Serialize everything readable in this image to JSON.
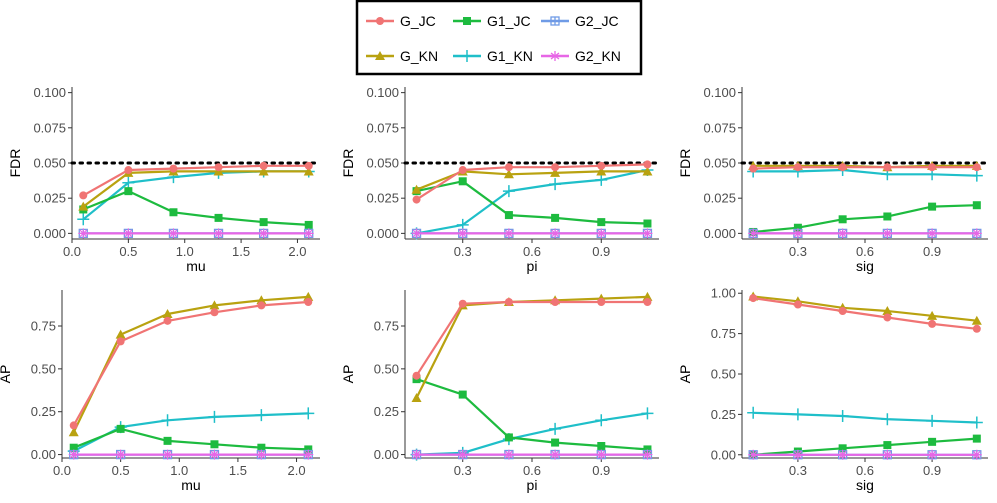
{
  "legend": {
    "entries": [
      {
        "key": "G_JC",
        "label": "G_JC"
      },
      {
        "key": "G1_JC",
        "label": "G1_JC"
      },
      {
        "key": "G2_JC",
        "label": "G2_JC"
      },
      {
        "key": "G_KN",
        "label": "G_KN"
      },
      {
        "key": "G1_KN",
        "label": "G1_KN"
      },
      {
        "key": "G2_KN",
        "label": "G2_KN"
      }
    ]
  },
  "series_style": {
    "G_JC": {
      "color": "#F07474",
      "marker": "circle"
    },
    "G1_JC": {
      "color": "#1DBB3F",
      "marker": "square"
    },
    "G2_JC": {
      "color": "#6F9BE6",
      "marker": "boxplus"
    },
    "G_KN": {
      "color": "#B9A210",
      "marker": "triangle"
    },
    "G1_KN": {
      "color": "#1FBFC9",
      "marker": "plus"
    },
    "G2_KN": {
      "color": "#E766E6",
      "marker": "asterisk"
    }
  },
  "chart_data": [
    {
      "type": "line",
      "id": "fdr-mu",
      "xlabel": "mu",
      "ylabel": "FDR",
      "x": [
        0.1,
        0.5,
        0.9,
        1.3,
        1.7,
        2.1
      ],
      "xlim": [
        0.0,
        2.2
      ],
      "ylim": [
        -0.004,
        0.104
      ],
      "xticks": [
        0.0,
        0.5,
        1.0,
        1.5,
        2.0
      ],
      "xtick_labels": [
        "0.0",
        "0.5",
        "1.0",
        "1.5",
        "2.0"
      ],
      "yticks": [
        0.0,
        0.025,
        0.05,
        0.075,
        0.1
      ],
      "ytick_labels": [
        "0.000",
        "0.025",
        "0.050",
        "0.075",
        "0.100"
      ],
      "reference_line": 0.05,
      "series": [
        {
          "name": "G_JC",
          "values": [
            0.027,
            0.045,
            0.046,
            0.047,
            0.048,
            0.048
          ]
        },
        {
          "name": "G_KN",
          "values": [
            0.019,
            0.043,
            0.044,
            0.044,
            0.044,
            0.044
          ]
        },
        {
          "name": "G1_JC",
          "values": [
            0.017,
            0.03,
            0.015,
            0.011,
            0.008,
            0.006
          ]
        },
        {
          "name": "G1_KN",
          "values": [
            0.01,
            0.036,
            0.04,
            0.043,
            0.044,
            0.044
          ]
        },
        {
          "name": "G2_JC",
          "values": [
            0.0,
            0.0,
            0.0,
            0.0,
            0.0,
            0.0
          ]
        },
        {
          "name": "G2_KN",
          "values": [
            0.0,
            0.0,
            0.0,
            0.0,
            0.0,
            0.0
          ]
        }
      ]
    },
    {
      "type": "line",
      "id": "fdr-pi",
      "xlabel": "pi",
      "ylabel": "FDR",
      "x": [
        0.1,
        0.3,
        0.5,
        0.7,
        0.9,
        1.1
      ],
      "xlim": [
        0.05,
        1.15
      ],
      "ylim": [
        -0.004,
        0.104
      ],
      "xticks": [
        0.3,
        0.6,
        0.9
      ],
      "xtick_labels": [
        "0.3",
        "0.6",
        "0.9"
      ],
      "yticks": [
        0.0,
        0.025,
        0.05,
        0.075,
        0.1
      ],
      "ytick_labels": [
        "0.000",
        "0.025",
        "0.050",
        "0.075",
        "0.100"
      ],
      "reference_line": 0.05,
      "series": [
        {
          "name": "G_JC",
          "values": [
            0.024,
            0.045,
            0.047,
            0.047,
            0.048,
            0.049
          ]
        },
        {
          "name": "G_KN",
          "values": [
            0.031,
            0.044,
            0.042,
            0.043,
            0.044,
            0.044
          ]
        },
        {
          "name": "G1_JC",
          "values": [
            0.03,
            0.037,
            0.013,
            0.011,
            0.008,
            0.007
          ]
        },
        {
          "name": "G1_KN",
          "values": [
            0.0,
            0.006,
            0.03,
            0.035,
            0.038,
            0.045
          ]
        },
        {
          "name": "G2_JC",
          "values": [
            0.0,
            0.0,
            0.0,
            0.0,
            0.0,
            0.0
          ]
        },
        {
          "name": "G2_KN",
          "values": [
            0.0,
            0.0,
            0.0,
            0.0,
            0.0,
            0.0
          ]
        }
      ]
    },
    {
      "type": "line",
      "id": "fdr-sig",
      "xlabel": "sig",
      "ylabel": "FDR",
      "x": [
        0.1,
        0.3,
        0.5,
        0.7,
        0.9,
        1.1
      ],
      "xlim": [
        0.05,
        1.15
      ],
      "ylim": [
        -0.004,
        0.104
      ],
      "xticks": [
        0.3,
        0.6,
        0.9
      ],
      "xtick_labels": [
        "0.3",
        "0.6",
        "0.9"
      ],
      "yticks": [
        0.0,
        0.025,
        0.05,
        0.075,
        0.1
      ],
      "ytick_labels": [
        "0.000",
        "0.025",
        "0.050",
        "0.075",
        "0.100"
      ],
      "reference_line": 0.05,
      "series": [
        {
          "name": "G_JC",
          "values": [
            0.046,
            0.047,
            0.047,
            0.047,
            0.047,
            0.047
          ]
        },
        {
          "name": "G_KN",
          "values": [
            0.048,
            0.048,
            0.048,
            0.047,
            0.048,
            0.048
          ]
        },
        {
          "name": "G1_JC",
          "values": [
            0.001,
            0.004,
            0.01,
            0.012,
            0.019,
            0.02
          ]
        },
        {
          "name": "G1_KN",
          "values": [
            0.044,
            0.044,
            0.045,
            0.042,
            0.042,
            0.041
          ]
        },
        {
          "name": "G2_JC",
          "values": [
            0.0,
            0.0,
            0.0,
            0.0,
            0.0,
            0.0
          ]
        },
        {
          "name": "G2_KN",
          "values": [
            0.0,
            0.0,
            0.0,
            0.0,
            0.0,
            0.0
          ]
        }
      ]
    },
    {
      "type": "line",
      "id": "ap-mu",
      "xlabel": "mu",
      "ylabel": "AP",
      "x": [
        0.1,
        0.5,
        0.9,
        1.3,
        1.7,
        2.1
      ],
      "xlim": [
        0.0,
        2.2
      ],
      "ylim": [
        -0.02,
        0.96
      ],
      "xticks": [
        0.0,
        0.5,
        1.0,
        1.5,
        2.0
      ],
      "xtick_labels": [
        "0.0",
        "0.5",
        "1.0",
        "1.5",
        "2.0"
      ],
      "yticks": [
        0.0,
        0.25,
        0.5,
        0.75
      ],
      "ytick_labels": [
        "0.00",
        "0.25",
        "0.50",
        "0.75"
      ],
      "series": [
        {
          "name": "G_JC",
          "values": [
            0.17,
            0.66,
            0.78,
            0.83,
            0.87,
            0.89
          ]
        },
        {
          "name": "G_KN",
          "values": [
            0.13,
            0.7,
            0.82,
            0.87,
            0.9,
            0.92
          ]
        },
        {
          "name": "G1_JC",
          "values": [
            0.04,
            0.15,
            0.08,
            0.06,
            0.04,
            0.03
          ]
        },
        {
          "name": "G1_KN",
          "values": [
            0.02,
            0.16,
            0.2,
            0.22,
            0.23,
            0.24
          ]
        },
        {
          "name": "G2_JC",
          "values": [
            0.0,
            0.0,
            0.0,
            0.0,
            0.0,
            0.0
          ]
        },
        {
          "name": "G2_KN",
          "values": [
            0.0,
            0.0,
            0.0,
            0.0,
            0.0,
            0.0
          ]
        }
      ]
    },
    {
      "type": "line",
      "id": "ap-pi",
      "xlabel": "pi",
      "ylabel": "AP",
      "x": [
        0.1,
        0.3,
        0.5,
        0.7,
        0.9,
        1.1
      ],
      "xlim": [
        0.05,
        1.15
      ],
      "ylim": [
        -0.02,
        0.96
      ],
      "xticks": [
        0.3,
        0.6,
        0.9
      ],
      "xtick_labels": [
        "0.3",
        "0.6",
        "0.9"
      ],
      "yticks": [
        0.0,
        0.25,
        0.5,
        0.75
      ],
      "ytick_labels": [
        "0.00",
        "0.25",
        "0.50",
        "0.75"
      ],
      "series": [
        {
          "name": "G_JC",
          "values": [
            0.46,
            0.88,
            0.89,
            0.89,
            0.89,
            0.89
          ]
        },
        {
          "name": "G_KN",
          "values": [
            0.33,
            0.87,
            0.89,
            0.9,
            0.91,
            0.92
          ]
        },
        {
          "name": "G1_JC",
          "values": [
            0.44,
            0.35,
            0.1,
            0.07,
            0.05,
            0.03
          ]
        },
        {
          "name": "G1_KN",
          "values": [
            0.0,
            0.01,
            0.09,
            0.15,
            0.2,
            0.24
          ]
        },
        {
          "name": "G2_JC",
          "values": [
            0.0,
            0.0,
            0.0,
            0.0,
            0.0,
            0.0
          ]
        },
        {
          "name": "G2_KN",
          "values": [
            0.0,
            0.0,
            0.0,
            0.0,
            0.0,
            0.0
          ]
        }
      ]
    },
    {
      "type": "line",
      "id": "ap-sig",
      "xlabel": "sig",
      "ylabel": "AP",
      "x": [
        0.1,
        0.3,
        0.5,
        0.7,
        0.9,
        1.1
      ],
      "xlim": [
        0.05,
        1.15
      ],
      "ylim": [
        -0.02,
        1.02
      ],
      "xticks": [
        0.3,
        0.6,
        0.9
      ],
      "xtick_labels": [
        "0.3",
        "0.6",
        "0.9"
      ],
      "yticks": [
        0.0,
        0.25,
        0.5,
        0.75,
        1.0
      ],
      "ytick_labels": [
        "0.00",
        "0.25",
        "0.50",
        "0.75",
        "1.00"
      ],
      "series": [
        {
          "name": "G_JC",
          "values": [
            0.97,
            0.93,
            0.89,
            0.85,
            0.81,
            0.78
          ]
        },
        {
          "name": "G_KN",
          "values": [
            0.98,
            0.95,
            0.91,
            0.89,
            0.86,
            0.83
          ]
        },
        {
          "name": "G1_JC",
          "values": [
            0.0,
            0.02,
            0.04,
            0.06,
            0.08,
            0.1
          ]
        },
        {
          "name": "G1_KN",
          "values": [
            0.26,
            0.25,
            0.24,
            0.22,
            0.21,
            0.2
          ]
        },
        {
          "name": "G2_JC",
          "values": [
            0.0,
            0.0,
            0.0,
            0.0,
            0.0,
            0.0
          ]
        },
        {
          "name": "G2_KN",
          "values": [
            0.0,
            0.0,
            0.0,
            0.0,
            0.0,
            0.0
          ]
        }
      ]
    }
  ]
}
